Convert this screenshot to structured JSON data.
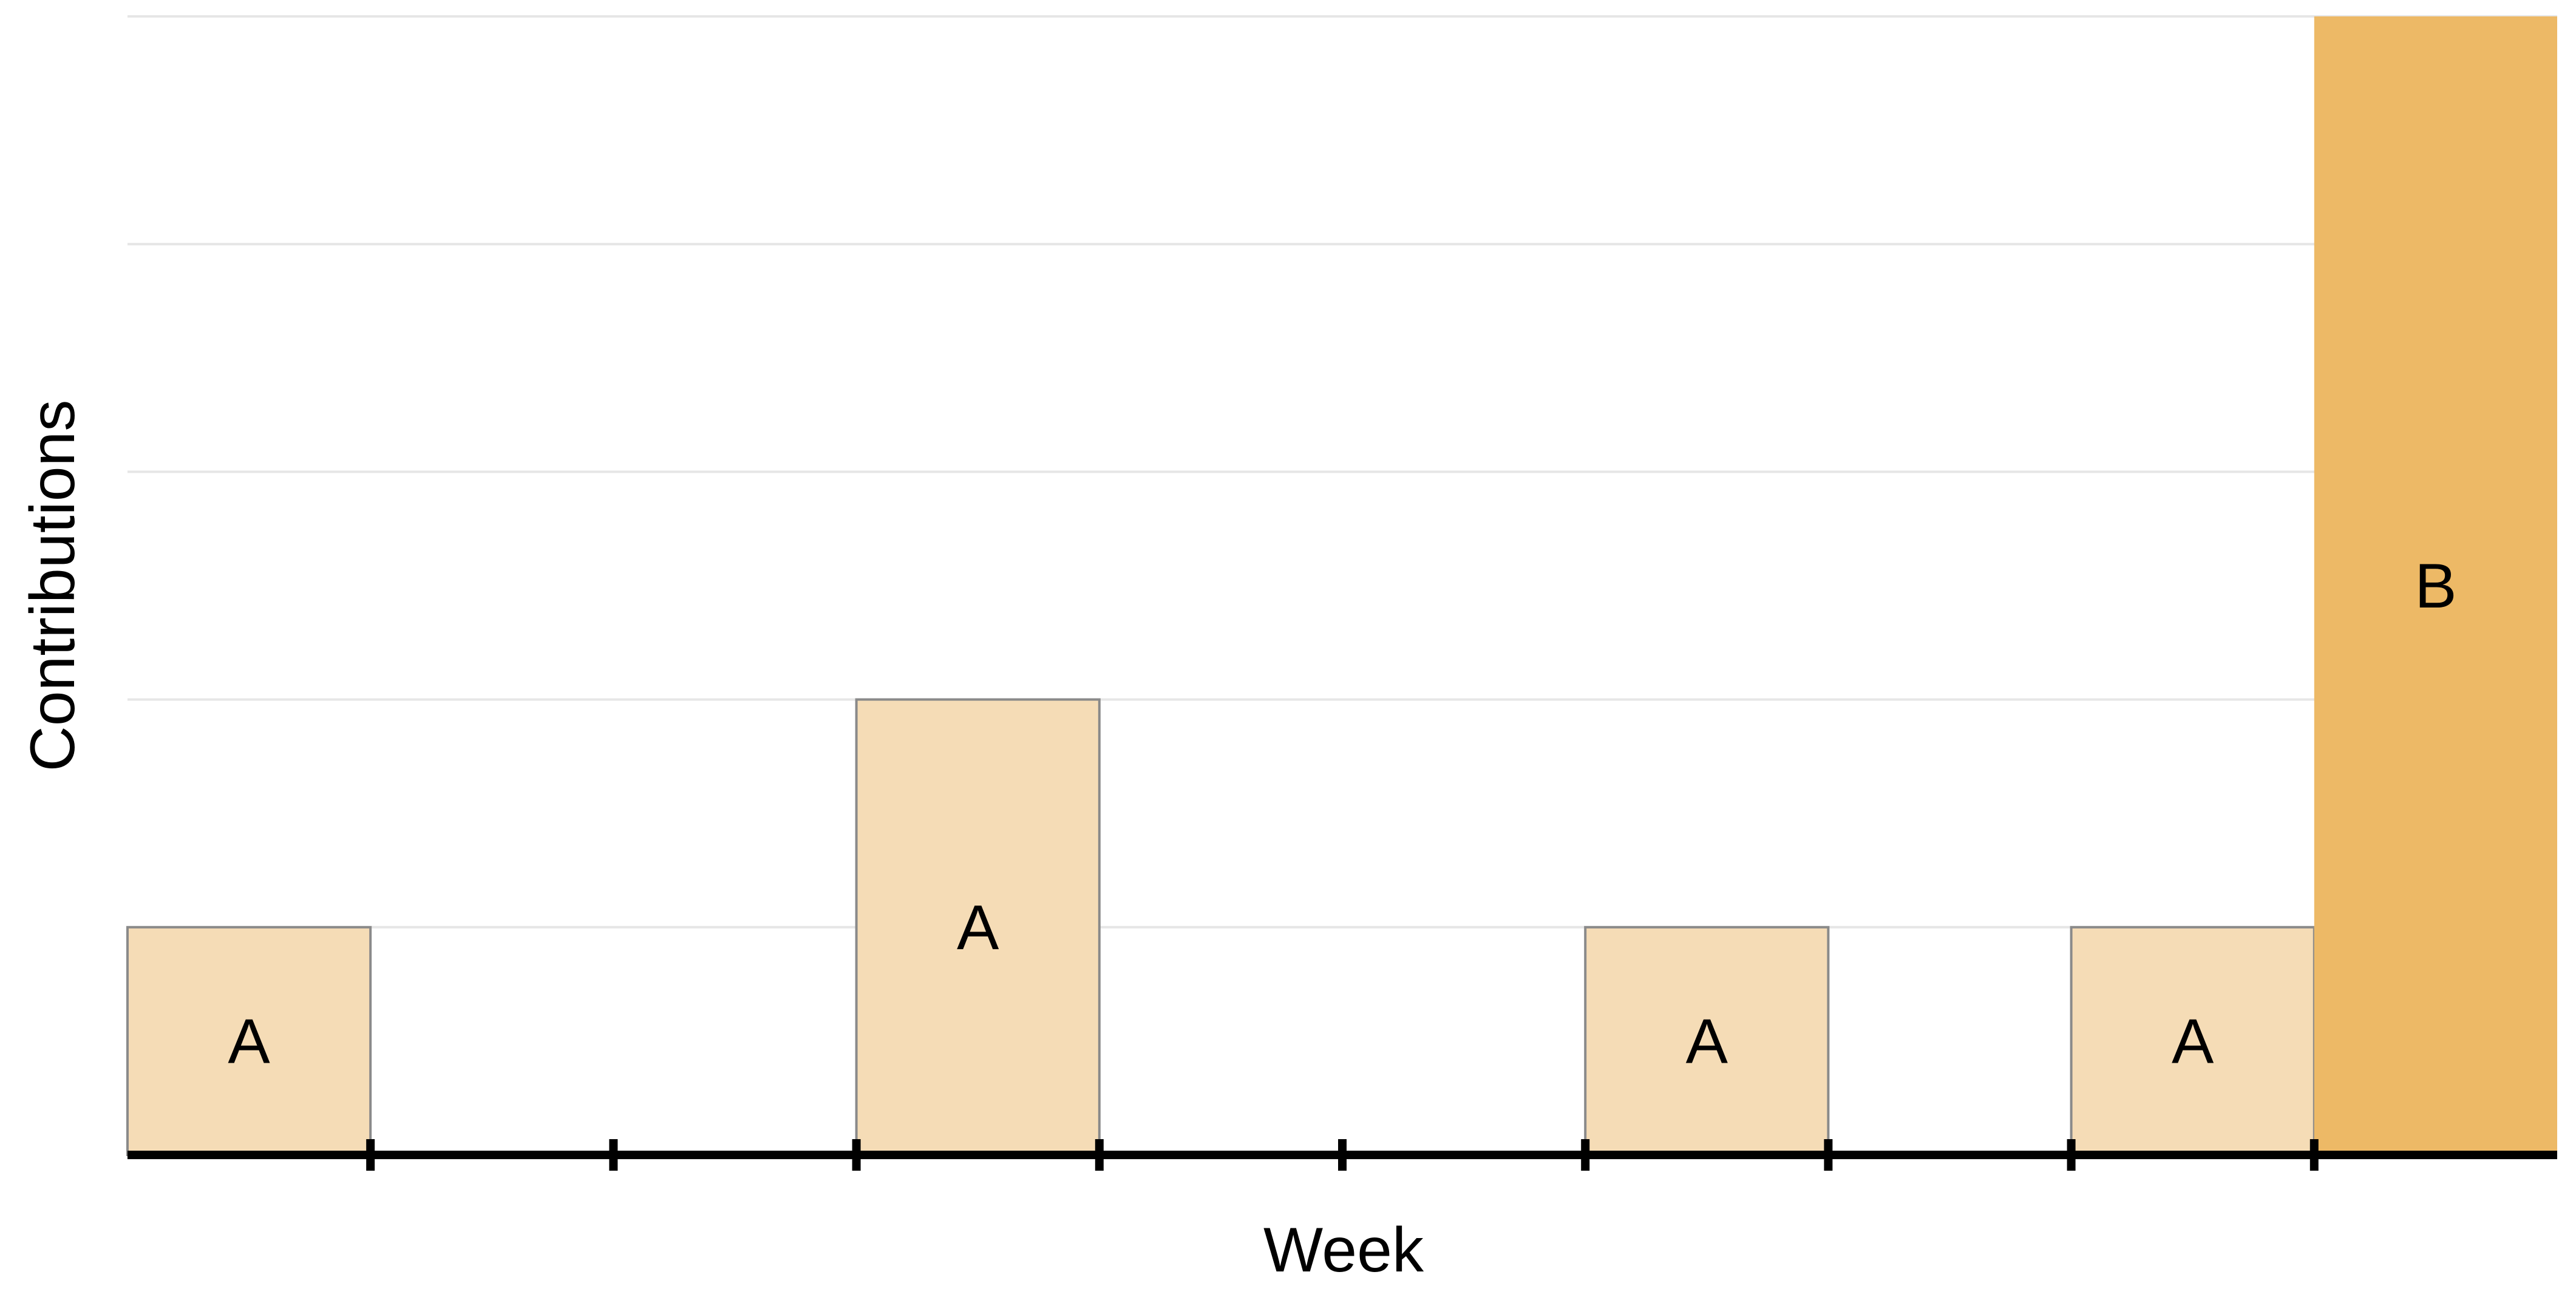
{
  "chart_data": {
    "type": "bar",
    "xlabel": "Week",
    "ylabel": "Contributions",
    "ylim": [
      0,
      5
    ],
    "x_slots": 10,
    "grid": true,
    "y_tick_labels": false,
    "x_tick_labels": false,
    "bars": [
      {
        "slot": 0,
        "value": 1,
        "label": "A",
        "color": "#F5DCB6"
      },
      {
        "slot": 3,
        "value": 2,
        "label": "A",
        "color": "#F5DCB6"
      },
      {
        "slot": 6,
        "value": 1,
        "label": "A",
        "color": "#F5DCB6"
      },
      {
        "slot": 8,
        "value": 1,
        "label": "A",
        "color": "#F5DCB6"
      },
      {
        "slot": 9,
        "value": 5,
        "label": "B",
        "color": "#EDB966"
      }
    ]
  }
}
